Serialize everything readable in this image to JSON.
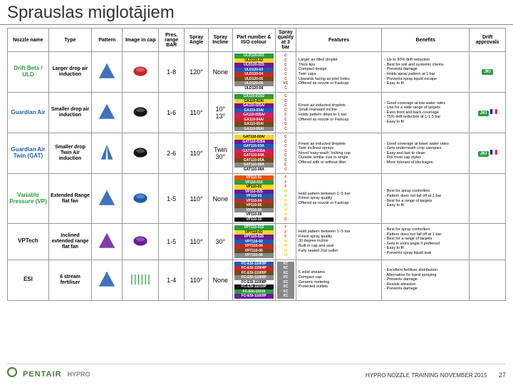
{
  "title": "Sprauslas miglotājiem",
  "headers": [
    "Nozzle name",
    "Type",
    "Pattern",
    "Image in cap",
    "Pres. range BAR",
    "Spray Angle",
    "Spray Incline",
    "Part number & ISO colour",
    "Spray quality at 3 bar",
    "Features",
    "Benefits",
    "Drift approvals"
  ],
  "footer": {
    "brand1": "PENTAIR",
    "brand2": "HYPRO",
    "text": "HYPRO NOZZLE TRAINING   NOVEMBER 2015",
    "page": "27"
  },
  "colors": {
    "green": "#2a9d3e",
    "blue": "#1e5bb0",
    "red": "#c62828",
    "brown": "#6d4c1e",
    "grey": "#888888",
    "white": "#ffffff",
    "purple": "#6a1b9a",
    "orange": "#e65100",
    "yellow": "#f9d71c",
    "dkgreen": "#1b5e20",
    "pink": "#d81b60",
    "black": "#111111",
    "nameGreen": "#2a9d3e",
    "nameBlue": "#1e5bb0",
    "nameBlack": "#111"
  },
  "quals": {
    "C": "#c62828",
    "VC": "#6d4c1e",
    "M": "#f9d71c",
    "F": "#e65100",
    "XC": "#ffffff"
  },
  "rows": [
    {
      "name": "Drift Beta / ULD",
      "nameColor": "nameGreen",
      "type": "Larger drop air induction",
      "patternColor": "#1e5bb0",
      "capColor": "#c62828",
      "pres": "1-8",
      "angle": "120°",
      "incline": "None",
      "parts": [
        {
          "t": "ULD120-015",
          "c": "green"
        },
        {
          "t": "ULD120-02",
          "c": "yellow"
        },
        {
          "t": "ULD120-025",
          "c": "purple"
        },
        {
          "t": "ULD120-03",
          "c": "blue"
        },
        {
          "t": "ULD120-04",
          "c": "red"
        },
        {
          "t": "ULD120-05",
          "c": "brown"
        },
        {
          "t": "ULD120-06",
          "c": "grey"
        },
        {
          "t": "ULD120-08",
          "c": "white"
        }
      ],
      "quals": [
        "C",
        "C",
        "C",
        "C",
        "C",
        "C",
        "VC",
        "C"
      ],
      "features": [
        "Larger air filled droplet",
        "Thick tips",
        "Compact design",
        "Twin caps",
        "Upwards facing air inlet holes",
        "Offered as nozzle or Fastcap"
      ],
      "benefits": [
        "- Up to 90% drift reduction",
        "- Best for soil and systemic chems",
        "- Prevents damage",
        "- Holds spray pattern at 1 bar",
        "- Prevents spray liquid escape",
        "- Easy to fit"
      ],
      "drift": [
        {
          "k": "jki"
        }
      ]
    },
    {
      "name": "Guardian Air",
      "nameColor": "nameBlue",
      "type": "Smaller drop air induction",
      "patternColor": "#1e5bb0",
      "capColor": "#111111",
      "pres": "1-6",
      "angle": "110°",
      "incline": "10° 13°",
      "parts": [
        {
          "t": "GA110-015/2",
          "c": "green"
        },
        {
          "t": "GA110-02A/",
          "c": "yellow"
        },
        {
          "t": "GA110-025A/",
          "c": "purple"
        },
        {
          "t": "GA110-03A/",
          "c": "blue"
        },
        {
          "t": "GA110-035A/",
          "c": "pink"
        },
        {
          "t": "GA110-04A/",
          "c": "red"
        },
        {
          "t": "GA110-05A/",
          "c": "brown"
        },
        {
          "t": "GA110-06A/",
          "c": "grey"
        }
      ],
      "quals": [
        "C",
        "C",
        "C",
        "C",
        "C",
        "C",
        "C",
        "C"
      ],
      "features": [
        "Finest air inducted droplets",
        "Small rearward incline",
        "Holds pattern down to 1 bar",
        "Offered as nozzle or Fastcap"
      ],
      "benefits": [
        "- Good coverage at low water rates",
        "- Use for a wide range of targets",
        "- Even front and back coverage",
        "- 75% drift reduction at 1-1.5 bar",
        "- Easy to fit"
      ],
      "drift": [
        {
          "k": "jki"
        },
        {
          "k": "flag"
        }
      ]
    },
    {
      "name": "Guardian Air Twin (GAT)",
      "nameColor": "nameBlue",
      "type": "Smaller drop Twin Air induction",
      "patternColor": "#1e5bb0",
      "capColor": "#111111",
      "pres": "2-6",
      "angle": "110°",
      "incline": "Twin 30°",
      "parts": [
        {
          "t": "GAT110-02A/",
          "c": "yellow"
        },
        {
          "t": "GAT110-025A",
          "c": "purple"
        },
        {
          "t": "GAT110-03A",
          "c": "blue"
        },
        {
          "t": "GAT110-035A",
          "c": "pink"
        },
        {
          "t": "GAT110-04A",
          "c": "red"
        },
        {
          "t": "GAT110-05A",
          "c": "brown"
        },
        {
          "t": "GAT110-06A",
          "c": "grey"
        },
        {
          "t": "GAT110-08A",
          "c": "white"
        }
      ],
      "quals": [
        "C",
        "C",
        "C",
        "C",
        "C",
        "C",
        "C",
        "C"
      ],
      "features": [
        "Finest air inducted droplets",
        "Twin inclined sprays",
        "Novel 'easy-wash' locking cap",
        "Outside similar size to single",
        "Offered with or without tilter"
      ],
      "benefits": [
        "- Good coverage at lower water rates",
        "- Gets underneath crop canopies",
        "- Easy and fast to clean",
        "- Fits most cap styles",
        "- More tolerant of blockages"
      ],
      "drift": [
        {
          "k": "jki"
        },
        {
          "k": "flag"
        }
      ]
    },
    {
      "name": "Variable Pressure (VP)",
      "nameColor": "nameGreen",
      "type": "Extended Range flat fan",
      "patternColor": "#1e5bb0",
      "capColor": "#1e5bb0",
      "pres": "1-5",
      "angle": "110°",
      "incline": "None",
      "parts": [
        {
          "t": "VP110-01",
          "c": "orange"
        },
        {
          "t": "VP110-015",
          "c": "green"
        },
        {
          "t": "VP110-02",
          "c": "yellow"
        },
        {
          "t": "VP110-025",
          "c": "purple"
        },
        {
          "t": "VP110-03",
          "c": "blue"
        },
        {
          "t": "VP110-04",
          "c": "red"
        },
        {
          "t": "VP110-05",
          "c": "brown"
        },
        {
          "t": "VP110-06",
          "c": "grey"
        },
        {
          "t": "VP110-08",
          "c": "white"
        },
        {
          "t": "VP110-10",
          "c": "black"
        }
      ],
      "quals": [
        "F",
        "F",
        "F",
        "M",
        "M",
        "M",
        "M",
        "M",
        "M",
        "C"
      ],
      "features": [
        "Hold pattern between 1~5 bar",
        "Finest spray quality",
        "Offered as nozzle or Fastcap"
      ],
      "benefits": [
        "- Best for spray controllers",
        "- Pattern does not fall off at 1 bar",
        "- Best for a range of targets",
        "- Easy to fit"
      ],
      "drift": []
    },
    {
      "name": "VPTech",
      "nameColor": "nameBlack",
      "type": "Inclined extended range flat fan",
      "patternColor": "#6a1b9a",
      "capColor": "#6a1b9a",
      "pres": "1-5",
      "angle": "110°",
      "incline": "30°",
      "parts": [
        {
          "t": "VPT110-015",
          "c": "green"
        },
        {
          "t": "VPT110-02",
          "c": "yellow"
        },
        {
          "t": "VPT110-025",
          "c": "purple"
        },
        {
          "t": "VPT110-03",
          "c": "blue"
        },
        {
          "t": "VPT110-04",
          "c": "red"
        },
        {
          "t": "VPT110-05",
          "c": "brown"
        },
        {
          "t": "VPT110-06",
          "c": "grey"
        }
      ],
      "quals": [
        "F",
        "F",
        "F",
        "M",
        "M",
        "M",
        "M"
      ],
      "features": [
        "Hold pattern between 1~5 bar",
        "Finest spray quality",
        "30 degree incline",
        "Built in cap and seal",
        "Fully sealed 2nd outlet"
      ],
      "benefits": [
        "- Best for spray controllers",
        "- Pattern does not fall off at 1 bar",
        "- Best for a range of targets",
        "- Gets in extra angle if preferred",
        "- Easy to fit",
        "- Prevents spray liquid leak"
      ],
      "drift": []
    },
    {
      "name": "ESI",
      "nameColor": "nameBlack",
      "type": "6 stream fertiliser",
      "patternColor": "#1e5bb0",
      "capColor": "#2a9d3e",
      "pres": "1-4",
      "angle": "110°",
      "incline": "None",
      "parts": [
        {
          "t": "FC-ESI-11003P",
          "c": "blue"
        },
        {
          "t": "FC-ESI-11004P",
          "c": "red"
        },
        {
          "t": "FC-ESI-11005P",
          "c": "brown"
        },
        {
          "t": "FC-ESI-11006P",
          "c": "grey"
        },
        {
          "t": "FC-ESI-11008P",
          "c": "white"
        },
        {
          "t": "FC-ESI-11010P",
          "c": "black"
        },
        {
          "t": "FC-ESI-11015",
          "c": "green"
        },
        {
          "t": "FC-ESI-11020P",
          "c": "purple"
        }
      ],
      "quals": [
        "XC",
        "XC",
        "XC",
        "XC",
        "XC",
        "XC",
        "XC",
        "XC"
      ],
      "features": [
        "6 solid streams",
        "Compact cap",
        "Ceramic metering",
        "Protected outlets"
      ],
      "benefits": [
        "- Excellent fertiliser distribution",
        "- Alternative for band spraying",
        "- Prevents damage",
        "- Resists abrasion",
        "- Prevents damage"
      ],
      "drift": []
    }
  ]
}
